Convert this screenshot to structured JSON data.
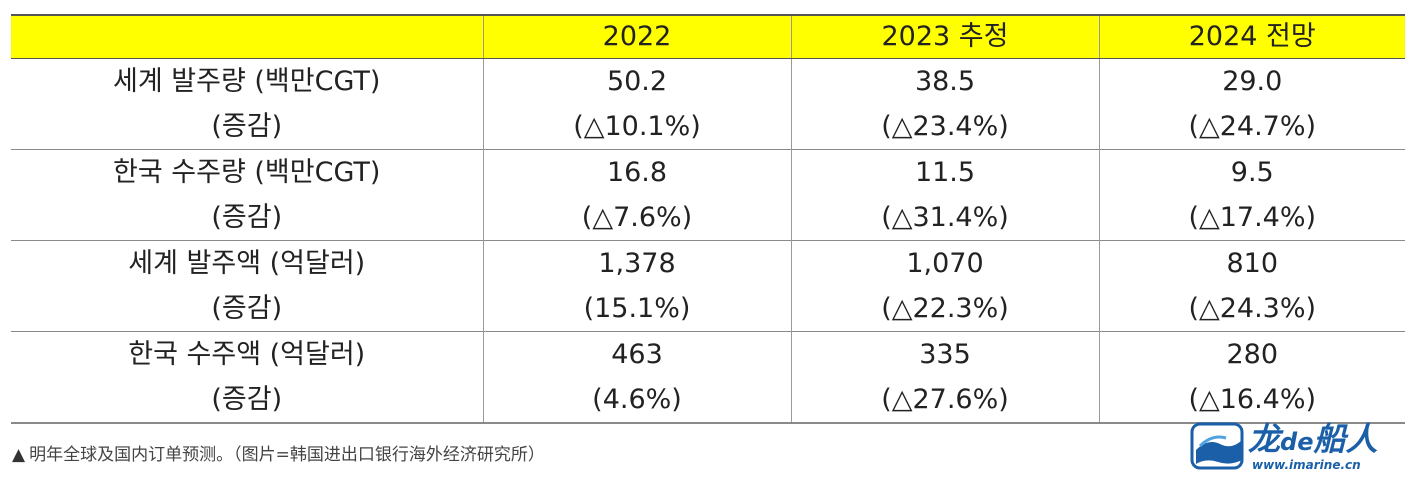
{
  "table": {
    "headers": [
      "",
      "2022",
      "2023 추정",
      "2024 전망"
    ],
    "rows": [
      {
        "label": "세계  발주량 (백만CGT)",
        "sublabel": "(증감)",
        "values": [
          "50.2",
          "38.5",
          "29.0"
        ],
        "changes": [
          "(△10.1%)",
          "(△23.4%)",
          "(△24.7%)"
        ]
      },
      {
        "label": "한국  수주량 (백만CGT)",
        "sublabel": "(증감)",
        "values": [
          "16.8",
          "11.5",
          "9.5"
        ],
        "changes": [
          "(△7.6%)",
          "(△31.4%)",
          "(△17.4%)"
        ]
      },
      {
        "label": "세계  발주액 (억달러)",
        "sublabel": "(증감)",
        "values": [
          "1,378",
          "1,070",
          "810"
        ],
        "changes": [
          "(15.1%)",
          "(△22.3%)",
          "(△24.3%)"
        ]
      },
      {
        "label": "한국  수주액 (억달러)",
        "sublabel": "(증감)",
        "values": [
          "463",
          "335",
          "280"
        ],
        "changes": [
          "(4.6%)",
          "(△27.6%)",
          "(△16.4%)"
        ]
      }
    ]
  },
  "caption": {
    "marker": "▲",
    "text": "明年全球及国内订单预测。（图片=韩国进出口银行海外经济研究所）"
  },
  "logo": {
    "name_part1": "龙",
    "name_part2": "de",
    "name_part3": "船人",
    "url": "www.imarine.cn",
    "icon": "ship-wave-emblem-icon"
  },
  "colors": {
    "header_bg": "#ffff00",
    "logo_blue": "#1a5fa8"
  }
}
